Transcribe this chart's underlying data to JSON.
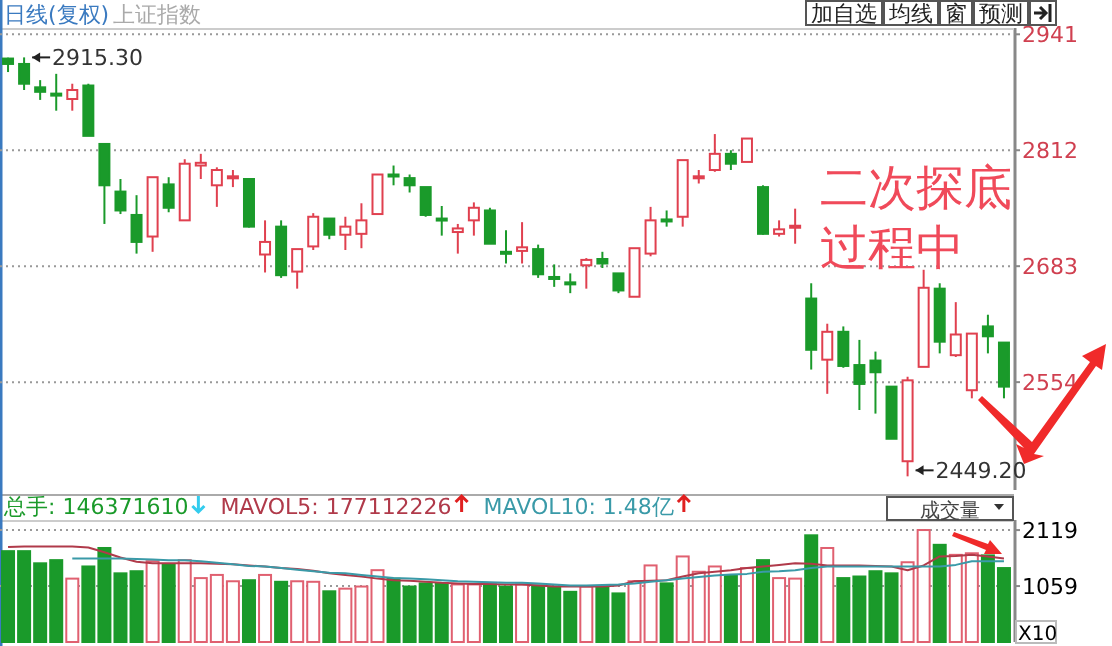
{
  "chart_data": [
    {
      "type": "candlestick",
      "title": "日线(复权)",
      "subtitle": "上证指数",
      "categories": [
        null,
        null,
        null,
        null,
        null,
        null,
        null,
        null,
        null,
        null,
        null,
        null,
        null,
        null,
        null,
        null,
        null,
        null,
        null,
        null,
        null,
        null,
        null,
        null,
        null,
        null,
        null,
        null,
        null,
        null,
        null,
        null,
        null,
        null,
        null,
        null,
        null,
        null,
        null,
        null,
        null,
        null,
        null,
        null,
        null,
        null,
        null,
        null,
        null,
        null,
        null,
        null,
        null,
        null,
        null,
        null,
        null,
        null,
        null,
        null,
        null,
        null,
        null
      ],
      "ohlc": [
        [
          2914,
          2915,
          2899,
          2908
        ],
        [
          2908,
          2915.3,
          2879,
          2886
        ],
        [
          2882,
          2890,
          2868,
          2877
        ],
        [
          2875,
          2897,
          2856,
          2874
        ],
        [
          2869,
          2886,
          2856,
          2879
        ],
        [
          2884,
          2886,
          2828,
          2828
        ],
        [
          2819,
          2819,
          2730,
          2773
        ],
        [
          2766,
          2780,
          2741,
          2745
        ],
        [
          2740,
          2762,
          2697,
          2710
        ],
        [
          2716,
          2782,
          2699,
          2782
        ],
        [
          2774,
          2782,
          2743,
          2748
        ],
        [
          2734,
          2802,
          2734,
          2797
        ],
        [
          2795,
          2808,
          2780,
          2798
        ],
        [
          2773,
          2793,
          2749,
          2790
        ],
        [
          2782,
          2790,
          2771,
          2783
        ],
        [
          2780,
          2780,
          2726,
          2727
        ],
        [
          2696,
          2734,
          2676,
          2710
        ],
        [
          2727,
          2734,
          2670,
          2673
        ],
        [
          2677,
          2702,
          2658,
          2702
        ],
        [
          2705,
          2742,
          2701,
          2738
        ],
        [
          2736,
          2736,
          2713,
          2718
        ],
        [
          2718,
          2738,
          2701,
          2727
        ],
        [
          2719,
          2753,
          2703,
          2734
        ],
        [
          2741,
          2785,
          2741,
          2785
        ],
        [
          2785,
          2795,
          2773,
          2783
        ],
        [
          2781,
          2785,
          2765,
          2773
        ],
        [
          2771,
          2771,
          2738,
          2740
        ],
        [
          2736,
          2750,
          2717,
          2734
        ],
        [
          2721,
          2730,
          2697,
          2725
        ],
        [
          2734,
          2754,
          2717,
          2748
        ],
        [
          2745,
          2748,
          2708,
          2708
        ],
        [
          2699,
          2723,
          2686,
          2697
        ],
        [
          2700,
          2732,
          2686,
          2704
        ],
        [
          2702,
          2707,
          2670,
          2674
        ],
        [
          2671,
          2685,
          2660,
          2669
        ],
        [
          2665,
          2675,
          2653,
          2663
        ],
        [
          2684,
          2692,
          2658,
          2690
        ],
        [
          2691,
          2699,
          2681,
          2686
        ],
        [
          2675,
          2675,
          2653,
          2656
        ],
        [
          2649,
          2703,
          2649,
          2703
        ],
        [
          2697,
          2749,
          2694,
          2734
        ],
        [
          2735,
          2745,
          2727,
          2733
        ],
        [
          2738,
          2801,
          2727,
          2801
        ],
        [
          2781,
          2790,
          2775,
          2783
        ],
        [
          2790,
          2830,
          2788,
          2808
        ],
        [
          2808,
          2812,
          2790,
          2797
        ],
        [
          2799,
          2825,
          2799,
          2825
        ],
        [
          2771,
          2773,
          2718,
          2719
        ],
        [
          2719,
          2734,
          2716,
          2724
        ],
        [
          2727,
          2747,
          2708,
          2728
        ],
        [
          2647,
          2664,
          2568,
          2590
        ],
        [
          2579,
          2619,
          2541,
          2610
        ],
        [
          2610,
          2616,
          2570,
          2572
        ],
        [
          2573,
          2601,
          2523,
          2552
        ],
        [
          2578,
          2588,
          2519,
          2565
        ],
        [
          2549,
          2549,
          2491,
          2491
        ],
        [
          2466,
          2560,
          2449.2,
          2556
        ],
        [
          2571,
          2679,
          2571,
          2659
        ],
        [
          2658,
          2664,
          2586,
          2599
        ],
        [
          2584,
          2643,
          2582,
          2607
        ],
        [
          2545,
          2608,
          2536,
          2608
        ],
        [
          2616,
          2629,
          2586,
          2605
        ],
        [
          2598,
          2598,
          2536,
          2549
        ]
      ],
      "ylim": [
        2434,
        2948
      ],
      "yticks": [
        2554,
        2683,
        2812,
        2941
      ],
      "grid": "y",
      "annotations": [
        "2915.30",
        "2449.20",
        "二次探底过程中",
        "加自选",
        "均线",
        "窗",
        "预测"
      ]
    },
    {
      "type": "bar",
      "categories": [
        null,
        null,
        null,
        null,
        null,
        null,
        null,
        null,
        null,
        null,
        null,
        null,
        null,
        null,
        null,
        null,
        null,
        null,
        null,
        null,
        null,
        null,
        null,
        null,
        null,
        null,
        null,
        null,
        null,
        null,
        null,
        null,
        null,
        null,
        null,
        null,
        null,
        null,
        null,
        null,
        null,
        null,
        null,
        null,
        null,
        null,
        null,
        null,
        null,
        null,
        null,
        null,
        null,
        null,
        null,
        null,
        null,
        null,
        null,
        null,
        null,
        null,
        null
      ],
      "series": [
        {
          "name": "总手: 146371610",
          "color": "#1a9a2a",
          "colors": [
            "#1a9a2a",
            "#1a9a2a",
            "#1a9a2a",
            "#1a9a2a",
            "#e06070",
            "#1a9a2a",
            "#1a9a2a",
            "#1a9a2a",
            "#1a9a2a",
            "#e06070",
            "#1a9a2a",
            "#e06070",
            "#e06070",
            "#e06070",
            "#e06070",
            "#1a9a2a",
            "#e06070",
            "#1a9a2a",
            "#e06070",
            "#e06070",
            "#1a9a2a",
            "#e06070",
            "#e06070",
            "#e06070",
            "#1a9a2a",
            "#1a9a2a",
            "#1a9a2a",
            "#1a9a2a",
            "#e06070",
            "#e06070",
            "#1a9a2a",
            "#1a9a2a",
            "#e06070",
            "#1a9a2a",
            "#1a9a2a",
            "#1a9a2a",
            "#e06070",
            "#1a9a2a",
            "#1a9a2a",
            "#e06070",
            "#e06070",
            "#1a9a2a",
            "#e06070",
            "#e06070",
            "#e06070",
            "#1a9a2a",
            "#e06070",
            "#1a9a2a",
            "#e06070",
            "#e06070",
            "#1a9a2a",
            "#e06070",
            "#1a9a2a",
            "#1a9a2a",
            "#1a9a2a",
            "#1a9a2a",
            "#e06070",
            "#e06070",
            "#1a9a2a",
            "#e06070",
            "#e06070",
            "#1a9a2a",
            "#1a9a2a"
          ],
          "values": [
            1720,
            1720,
            1490,
            1550,
            1200,
            1430,
            1780,
            1300,
            1340,
            1530,
            1470,
            1550,
            1210,
            1270,
            1150,
            1170,
            1270,
            1140,
            1150,
            1140,
            960,
            1010,
            1050,
            1360,
            1200,
            1050,
            1110,
            1110,
            1090,
            1090,
            1090,
            1050,
            1090,
            1070,
            1050,
            950,
            1050,
            1050,
            920,
            1150,
            1450,
            1110,
            1620,
            1330,
            1430,
            1260,
            1400,
            1550,
            1210,
            1200,
            2020,
            1780,
            1210,
            1240,
            1340,
            1300,
            1510,
            2120,
            1840,
            1650,
            1680,
            1640,
            1400
          ]
        },
        {
          "type": "line",
          "name": "MAVOL5: 177112226",
          "color": "#b03a4a",
          "values": [
            1800,
            1810,
            1810,
            1810,
            1810,
            1790,
            1700,
            1600,
            1520,
            1490,
            1490,
            1490,
            1490,
            1480,
            1470,
            1450,
            1430,
            1400,
            1380,
            1350,
            1300,
            1270,
            1240,
            1200,
            1170,
            1160,
            1140,
            1120,
            1110,
            1100,
            1100,
            1090,
            1090,
            1070,
            1050,
            1050,
            1050,
            1050,
            1070,
            1150,
            1160,
            1170,
            1240,
            1300,
            1330,
            1360,
            1400,
            1430,
            1460,
            1490,
            1480,
            1450,
            1450,
            1450,
            1440,
            1430,
            1360,
            1450,
            1620,
            1630,
            1650,
            1620,
            1580
          ]
        },
        {
          "type": "line",
          "name": "MAVOL10: 1.48亿",
          "color": "#3a9aa8",
          "values": [
            null,
            null,
            null,
            null,
            1580,
            1580,
            1580,
            1580,
            1570,
            1560,
            1550,
            1550,
            1530,
            1500,
            1470,
            1440,
            1430,
            1400,
            1370,
            1340,
            1310,
            1300,
            1270,
            1240,
            1210,
            1200,
            1190,
            1170,
            1150,
            1140,
            1130,
            1120,
            1120,
            1110,
            1090,
            1070,
            1070,
            1080,
            1090,
            1110,
            1140,
            1170,
            1200,
            1230,
            1260,
            1280,
            1290,
            1330,
            1340,
            1360,
            1400,
            1430,
            1430,
            1430,
            1430,
            1430,
            1430,
            1430,
            1430,
            1460,
            1530,
            1530,
            1530
          ]
        }
      ],
      "ylim": [
        0,
        2310
      ],
      "yticks": [
        1059,
        2119
      ],
      "grid": "y",
      "legend": "top left",
      "annotations": [
        "成交量",
        "X10"
      ]
    }
  ]
}
